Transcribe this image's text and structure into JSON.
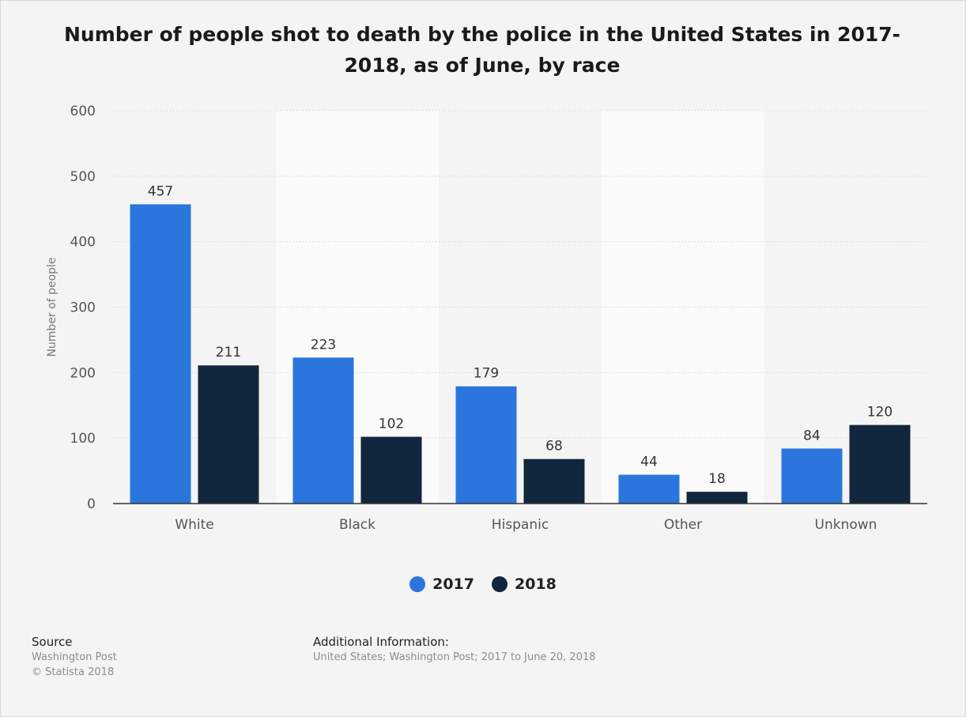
{
  "colors": {
    "series_2017": "#2a76dd",
    "series_2018": "#12263d",
    "grid": "#cccccc",
    "axis": "#333333",
    "band": "#fafafa"
  },
  "chart_data": {
    "type": "bar",
    "title": "Number of people shot to death by the police in the United States in 2017-2018, as of June, by race",
    "xlabel": "",
    "ylabel": "Number of people",
    "ylim": [
      0,
      600
    ],
    "yticks": [
      0,
      100,
      200,
      300,
      400,
      500,
      600
    ],
    "grid": true,
    "legend_position": "bottom",
    "categories": [
      "White",
      "Black",
      "Hispanic",
      "Other",
      "Unknown"
    ],
    "series": [
      {
        "name": "2017",
        "values": [
          457,
          223,
          179,
          44,
          84
        ]
      },
      {
        "name": "2018",
        "values": [
          211,
          102,
          68,
          18,
          120
        ]
      }
    ]
  },
  "footer": {
    "source_heading": "Source",
    "source_lines": [
      "Washington Post",
      "© Statista 2018"
    ],
    "info_heading": "Additional Information:",
    "info_text": "United States; Washington Post; 2017 to June 20, 2018"
  }
}
